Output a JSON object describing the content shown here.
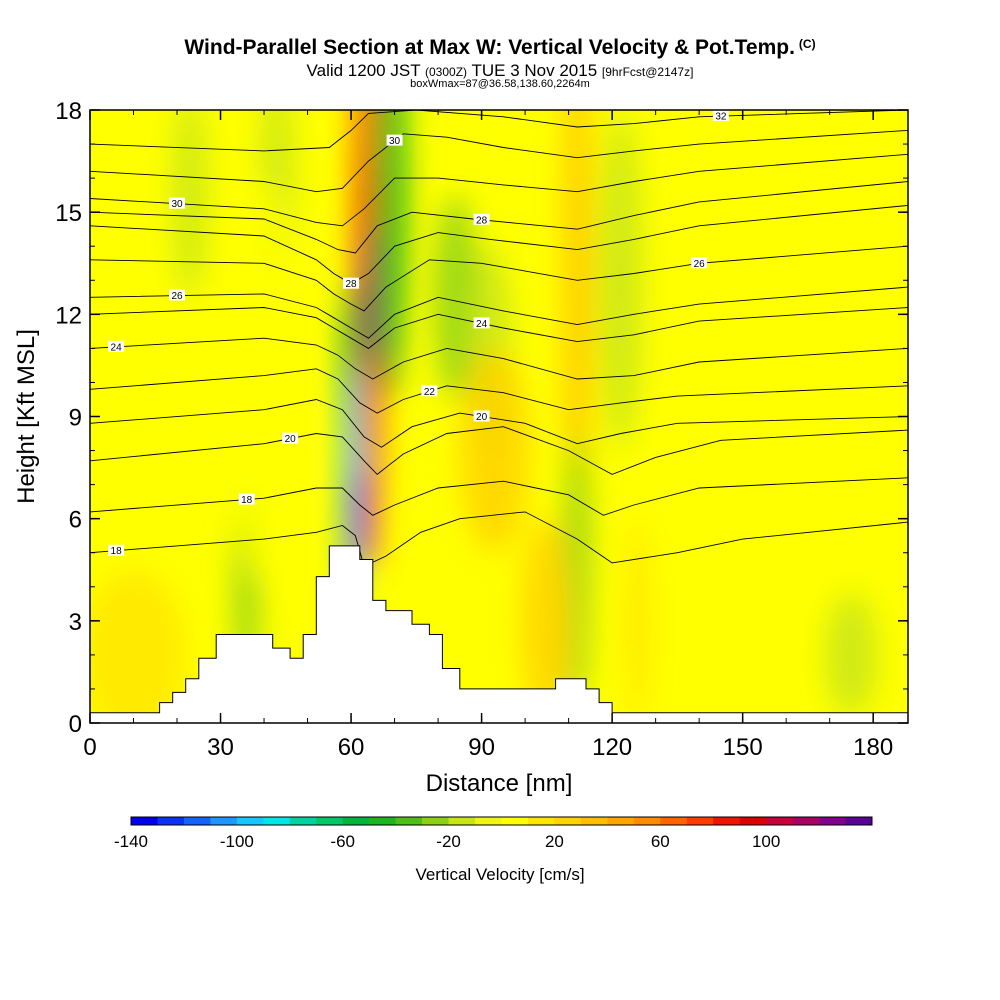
{
  "header": {
    "title": "Wind-Parallel Section at Max W: Vertical Velocity & Pot.Temp.",
    "copyright": "(C)",
    "valid_prefix": "Valid 1200 JST",
    "valid_utc": "(0300Z)",
    "valid_date": "TUE 3 Nov 2015",
    "forecast": "[9hrFcst@2147z]",
    "box_info": "boxWmax=87@36.58,138.60,2264m"
  },
  "colors": {
    "ramp": [
      "#0000ee",
      "#0a32f5",
      "#1464fa",
      "#1e96ff",
      "#14c8ff",
      "#00e6e6",
      "#00d2a0",
      "#00c864",
      "#00b43c",
      "#1eb41e",
      "#50be14",
      "#8cd214",
      "#c8e614",
      "#f0f514",
      "#ffff00",
      "#ffe600",
      "#ffd200",
      "#ffbe00",
      "#ffa500",
      "#ff8c00",
      "#ff6400",
      "#ff3c00",
      "#f01400",
      "#dc0000",
      "#c8003c",
      "#aa0064",
      "#82008c",
      "#5a0096"
    ]
  },
  "chart_data": {
    "type": "heatmap",
    "xlabel": "Distance [nm]",
    "ylabel": "Height [Kft MSL]",
    "xlim": [
      0,
      188
    ],
    "ylim": [
      0,
      18
    ],
    "x_ticks": [
      0,
      30,
      60,
      90,
      120,
      150,
      180
    ],
    "y_ticks": [
      0,
      3,
      6,
      9,
      12,
      15,
      18
    ],
    "colorbar": {
      "label": "Vertical Velocity [cm/s]",
      "min": -140,
      "max": 140,
      "ticks": [
        -140,
        -100,
        -60,
        -20,
        20,
        60,
        100
      ]
    },
    "terrain": [
      [
        0,
        0.3
      ],
      [
        16,
        0.3
      ],
      [
        16,
        0.6
      ],
      [
        19,
        0.6
      ],
      [
        19,
        0.9
      ],
      [
        22,
        0.9
      ],
      [
        22,
        1.3
      ],
      [
        25,
        1.3
      ],
      [
        25,
        1.9
      ],
      [
        29,
        1.9
      ],
      [
        29,
        2.6
      ],
      [
        42,
        2.6
      ],
      [
        42,
        2.2
      ],
      [
        46,
        2.2
      ],
      [
        46,
        1.9
      ],
      [
        49,
        1.9
      ],
      [
        49,
        2.6
      ],
      [
        52,
        2.6
      ],
      [
        52,
        4.3
      ],
      [
        55,
        4.3
      ],
      [
        55,
        5.2
      ],
      [
        62,
        5.2
      ],
      [
        62,
        4.8
      ],
      [
        65,
        4.8
      ],
      [
        65,
        3.6
      ],
      [
        68,
        3.6
      ],
      [
        68,
        3.3
      ],
      [
        74,
        3.3
      ],
      [
        74,
        2.9
      ],
      [
        78,
        2.9
      ],
      [
        78,
        2.6
      ],
      [
        81,
        2.6
      ],
      [
        81,
        1.6
      ],
      [
        85,
        1.6
      ],
      [
        85,
        1.0
      ],
      [
        107,
        1.0
      ],
      [
        107,
        1.3
      ],
      [
        114,
        1.3
      ],
      [
        114,
        1.0
      ],
      [
        117,
        1.0
      ],
      [
        117,
        0.6
      ],
      [
        120,
        0.6
      ],
      [
        120,
        0.3
      ],
      [
        188,
        0.3
      ]
    ],
    "velocity_cells": [
      {
        "x": 63.5,
        "y": 16.0,
        "w": 3,
        "h": 5.5,
        "value": 70
      },
      {
        "x": 64.5,
        "y": 10.5,
        "w": 3,
        "h": 6.0,
        "value": 80
      },
      {
        "x": 64.5,
        "y": 12.0,
        "w": 1.5,
        "h": 2.5,
        "value": 120
      },
      {
        "x": 63.5,
        "y": 8.0,
        "w": 2.5,
        "h": 3.0,
        "value": 50
      },
      {
        "x": 69.0,
        "y": 15.5,
        "w": 4,
        "h": 6.0,
        "value": -45
      },
      {
        "x": 60.0,
        "y": 10.5,
        "w": 2.5,
        "h": 2.5,
        "value": -55
      },
      {
        "x": 60.5,
        "y": 7.0,
        "w": 2.5,
        "h": 3.5,
        "value": -100
      },
      {
        "x": 61.5,
        "y": 6.0,
        "w": 1.5,
        "h": 1.5,
        "value": -130
      },
      {
        "x": 43.0,
        "y": 16.0,
        "w": 4,
        "h": 3.0,
        "value": -20
      },
      {
        "x": 23.0,
        "y": 15.5,
        "w": 4,
        "h": 3.0,
        "value": -20
      },
      {
        "x": 84.0,
        "y": 12.5,
        "w": 5,
        "h": 3.0,
        "value": -30
      },
      {
        "x": 92.0,
        "y": 11.0,
        "w": 5,
        "h": 3.0,
        "value": -20
      },
      {
        "x": 112.0,
        "y": 13.0,
        "w": 3,
        "h": 8.0,
        "value": 35
      },
      {
        "x": 93.0,
        "y": 8.0,
        "w": 8,
        "h": 3.0,
        "value": 25
      },
      {
        "x": 112.0,
        "y": 4.5,
        "w": 3,
        "h": 4.0,
        "value": -25
      },
      {
        "x": 122.0,
        "y": 13.0,
        "w": 5,
        "h": 5.0,
        "value": -15
      },
      {
        "x": 105.0,
        "y": 3.0,
        "w": 6,
        "h": 3.0,
        "value": 25
      },
      {
        "x": 36.0,
        "y": 4.0,
        "w": 3,
        "h": 3.0,
        "value": -25
      },
      {
        "x": 175.0,
        "y": 2.0,
        "w": 6,
        "h": 1.8,
        "value": -20
      },
      {
        "x": 126.0,
        "y": 3.0,
        "w": 3,
        "h": 3.0,
        "value": 15
      },
      {
        "x": 10.0,
        "y": 2.0,
        "w": 12,
        "h": 2.5,
        "value": 12
      },
      {
        "x": 40.0,
        "y": 10.0,
        "w": 8,
        "h": 6.0,
        "value": 8
      },
      {
        "x": 150.0,
        "y": 10.0,
        "w": 20,
        "h": 8.0,
        "value": 5
      }
    ],
    "isentropes": [
      {
        "label": "18",
        "label_x": 6,
        "points": [
          [
            0,
            5.0
          ],
          [
            40,
            5.4
          ],
          [
            52,
            5.6
          ],
          [
            58,
            5.8
          ],
          [
            61,
            5.5
          ],
          [
            63,
            4.6
          ],
          [
            68,
            4.9
          ],
          [
            76,
            5.6
          ],
          [
            85,
            6.0
          ],
          [
            100,
            6.2
          ],
          [
            112,
            5.4
          ],
          [
            120,
            4.7
          ],
          [
            135,
            5.0
          ],
          [
            150,
            5.4
          ],
          [
            188,
            5.9
          ]
        ]
      },
      {
        "label": "18",
        "label_x": 36,
        "points": [
          [
            0,
            6.2
          ],
          [
            40,
            6.6
          ],
          [
            52,
            6.9
          ],
          [
            58,
            6.9
          ],
          [
            62,
            6.4
          ],
          [
            65,
            6.1
          ],
          [
            70,
            6.4
          ],
          [
            80,
            6.9
          ],
          [
            95,
            7.1
          ],
          [
            110,
            6.7
          ],
          [
            118,
            6.1
          ],
          [
            125,
            6.4
          ],
          [
            140,
            6.9
          ],
          [
            188,
            7.2
          ]
        ]
      },
      {
        "label": "20",
        "label_x": 46,
        "points": [
          [
            0,
            7.7
          ],
          [
            40,
            8.2
          ],
          [
            52,
            8.5
          ],
          [
            58,
            8.4
          ],
          [
            63,
            7.7
          ],
          [
            66,
            7.3
          ],
          [
            72,
            7.9
          ],
          [
            82,
            8.5
          ],
          [
            95,
            8.7
          ],
          [
            110,
            8.0
          ],
          [
            120,
            7.3
          ],
          [
            130,
            7.8
          ],
          [
            145,
            8.3
          ],
          [
            188,
            8.6
          ]
        ]
      },
      {
        "label": "20",
        "label_x": 90,
        "points": [
          [
            0,
            8.8
          ],
          [
            40,
            9.2
          ],
          [
            52,
            9.5
          ],
          [
            58,
            9.2
          ],
          [
            63,
            8.4
          ],
          [
            67,
            8.1
          ],
          [
            74,
            8.7
          ],
          [
            85,
            9.1
          ],
          [
            100,
            8.8
          ],
          [
            112,
            8.2
          ],
          [
            122,
            8.5
          ],
          [
            135,
            8.8
          ],
          [
            188,
            9.0
          ]
        ]
      },
      {
        "label": "22",
        "label_x": 78,
        "points": [
          [
            0,
            9.8
          ],
          [
            40,
            10.2
          ],
          [
            52,
            10.4
          ],
          [
            57,
            10.1
          ],
          [
            62,
            9.4
          ],
          [
            66,
            9.1
          ],
          [
            72,
            9.5
          ],
          [
            82,
            9.9
          ],
          [
            95,
            9.7
          ],
          [
            110,
            9.2
          ],
          [
            122,
            9.4
          ],
          [
            135,
            9.6
          ],
          [
            188,
            9.9
          ]
        ]
      },
      {
        "label": "24",
        "label_x": 6,
        "points": [
          [
            0,
            11.0
          ],
          [
            40,
            11.3
          ],
          [
            52,
            11.1
          ],
          [
            57,
            10.8
          ],
          [
            61,
            10.4
          ],
          [
            65,
            10.1
          ],
          [
            72,
            10.6
          ],
          [
            82,
            11.0
          ],
          [
            95,
            10.7
          ],
          [
            112,
            10.1
          ],
          [
            125,
            10.2
          ],
          [
            140,
            10.6
          ],
          [
            188,
            11.0
          ]
        ]
      },
      {
        "label": "24",
        "label_x": 90,
        "points": [
          [
            0,
            12.0
          ],
          [
            40,
            12.2
          ],
          [
            52,
            11.9
          ],
          [
            56,
            11.6
          ],
          [
            60,
            11.3
          ],
          [
            64,
            11.0
          ],
          [
            70,
            11.6
          ],
          [
            80,
            12.0
          ],
          [
            95,
            11.6
          ],
          [
            112,
            11.2
          ],
          [
            125,
            11.4
          ],
          [
            140,
            11.8
          ],
          [
            188,
            12.2
          ]
        ]
      },
      {
        "label": "26",
        "label_x": 20,
        "points": [
          [
            0,
            12.5
          ],
          [
            40,
            12.6
          ],
          [
            52,
            12.2
          ],
          [
            56,
            11.9
          ],
          [
            60,
            11.6
          ],
          [
            64,
            11.3
          ],
          [
            70,
            12.0
          ],
          [
            80,
            12.5
          ],
          [
            95,
            12.1
          ],
          [
            112,
            11.7
          ],
          [
            125,
            12.0
          ],
          [
            140,
            12.3
          ],
          [
            188,
            12.8
          ]
        ]
      },
      {
        "label": "26",
        "label_x": 140,
        "points": [
          [
            0,
            13.6
          ],
          [
            40,
            13.5
          ],
          [
            52,
            13.0
          ],
          [
            56,
            12.6
          ],
          [
            60,
            12.3
          ],
          [
            63,
            12.1
          ],
          [
            68,
            12.8
          ],
          [
            78,
            13.6
          ],
          [
            90,
            13.5
          ],
          [
            112,
            13.0
          ],
          [
            125,
            13.2
          ],
          [
            140,
            13.5
          ],
          [
            188,
            14.0
          ]
        ]
      },
      {
        "label": "28",
        "label_x": 60,
        "points": [
          [
            0,
            14.6
          ],
          [
            40,
            14.3
          ],
          [
            52,
            13.6
          ],
          [
            56,
            13.2
          ],
          [
            60,
            12.9
          ],
          [
            64,
            13.2
          ],
          [
            70,
            14.0
          ],
          [
            80,
            14.4
          ],
          [
            92,
            14.2
          ],
          [
            112,
            13.9
          ],
          [
            125,
            14.2
          ],
          [
            140,
            14.6
          ],
          [
            188,
            15.2
          ]
        ]
      },
      {
        "label": "28",
        "label_x": 90,
        "points": [
          [
            0,
            15.0
          ],
          [
            40,
            14.8
          ],
          [
            52,
            14.2
          ],
          [
            57,
            13.9
          ],
          [
            61,
            13.8
          ],
          [
            66,
            14.6
          ],
          [
            74,
            15.0
          ],
          [
            88,
            14.8
          ],
          [
            112,
            14.5
          ],
          [
            125,
            14.9
          ],
          [
            140,
            15.3
          ],
          [
            188,
            15.9
          ]
        ]
      },
      {
        "label": "30",
        "label_x": 20,
        "points": [
          [
            0,
            15.4
          ],
          [
            40,
            15.1
          ],
          [
            52,
            14.7
          ],
          [
            58,
            14.6
          ],
          [
            63,
            15.1
          ],
          [
            70,
            16.0
          ],
          [
            80,
            16.0
          ],
          [
            95,
            15.8
          ],
          [
            112,
            15.6
          ],
          [
            125,
            15.9
          ],
          [
            140,
            16.2
          ],
          [
            188,
            16.7
          ]
        ]
      },
      {
        "label": "30",
        "label_x": 70,
        "points": [
          [
            0,
            16.2
          ],
          [
            40,
            15.9
          ],
          [
            52,
            15.6
          ],
          [
            58,
            15.7
          ],
          [
            64,
            16.5
          ],
          [
            72,
            17.3
          ],
          [
            82,
            17.2
          ],
          [
            95,
            16.9
          ],
          [
            112,
            16.6
          ],
          [
            125,
            16.8
          ],
          [
            140,
            17.0
          ],
          [
            188,
            17.4
          ]
        ]
      },
      {
        "label": "32",
        "label_x": 145,
        "points": [
          [
            0,
            17.0
          ],
          [
            40,
            16.8
          ],
          [
            55,
            16.9
          ],
          [
            60,
            17.4
          ],
          [
            64,
            17.9
          ],
          [
            75,
            18.0
          ],
          [
            95,
            17.8
          ],
          [
            112,
            17.5
          ],
          [
            125,
            17.6
          ],
          [
            140,
            17.8
          ],
          [
            188,
            18.0
          ]
        ]
      }
    ]
  }
}
